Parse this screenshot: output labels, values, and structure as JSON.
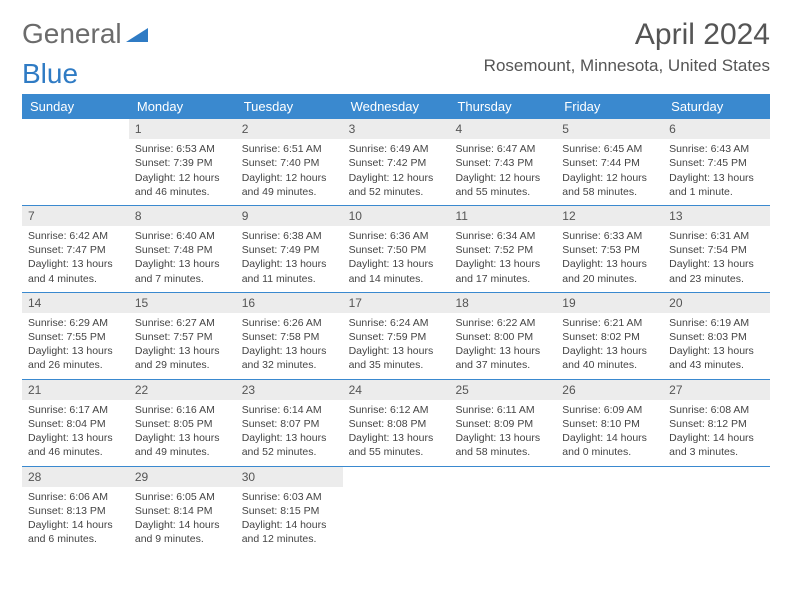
{
  "logo": {
    "text_gray": "General",
    "text_blue": "Blue"
  },
  "header": {
    "month_title": "April 2024",
    "location": "Rosemount, Minnesota, United States"
  },
  "day_names": [
    "Sunday",
    "Monday",
    "Tuesday",
    "Wednesday",
    "Thursday",
    "Friday",
    "Saturday"
  ],
  "colors": {
    "header_bg": "#3a89cf",
    "header_text": "#ffffff",
    "daynum_bg": "#ececec",
    "rule": "#3a89cf",
    "body_text": "#444444"
  },
  "layout": {
    "columns": 7,
    "rows": 5,
    "first_weekday_offset": 1
  },
  "days": [
    {
      "n": 1,
      "sunrise": "6:53 AM",
      "sunset": "7:39 PM",
      "daylight": "12 hours and 46 minutes."
    },
    {
      "n": 2,
      "sunrise": "6:51 AM",
      "sunset": "7:40 PM",
      "daylight": "12 hours and 49 minutes."
    },
    {
      "n": 3,
      "sunrise": "6:49 AM",
      "sunset": "7:42 PM",
      "daylight": "12 hours and 52 minutes."
    },
    {
      "n": 4,
      "sunrise": "6:47 AM",
      "sunset": "7:43 PM",
      "daylight": "12 hours and 55 minutes."
    },
    {
      "n": 5,
      "sunrise": "6:45 AM",
      "sunset": "7:44 PM",
      "daylight": "12 hours and 58 minutes."
    },
    {
      "n": 6,
      "sunrise": "6:43 AM",
      "sunset": "7:45 PM",
      "daylight": "13 hours and 1 minute."
    },
    {
      "n": 7,
      "sunrise": "6:42 AM",
      "sunset": "7:47 PM",
      "daylight": "13 hours and 4 minutes."
    },
    {
      "n": 8,
      "sunrise": "6:40 AM",
      "sunset": "7:48 PM",
      "daylight": "13 hours and 7 minutes."
    },
    {
      "n": 9,
      "sunrise": "6:38 AM",
      "sunset": "7:49 PM",
      "daylight": "13 hours and 11 minutes."
    },
    {
      "n": 10,
      "sunrise": "6:36 AM",
      "sunset": "7:50 PM",
      "daylight": "13 hours and 14 minutes."
    },
    {
      "n": 11,
      "sunrise": "6:34 AM",
      "sunset": "7:52 PM",
      "daylight": "13 hours and 17 minutes."
    },
    {
      "n": 12,
      "sunrise": "6:33 AM",
      "sunset": "7:53 PM",
      "daylight": "13 hours and 20 minutes."
    },
    {
      "n": 13,
      "sunrise": "6:31 AM",
      "sunset": "7:54 PM",
      "daylight": "13 hours and 23 minutes."
    },
    {
      "n": 14,
      "sunrise": "6:29 AM",
      "sunset": "7:55 PM",
      "daylight": "13 hours and 26 minutes."
    },
    {
      "n": 15,
      "sunrise": "6:27 AM",
      "sunset": "7:57 PM",
      "daylight": "13 hours and 29 minutes."
    },
    {
      "n": 16,
      "sunrise": "6:26 AM",
      "sunset": "7:58 PM",
      "daylight": "13 hours and 32 minutes."
    },
    {
      "n": 17,
      "sunrise": "6:24 AM",
      "sunset": "7:59 PM",
      "daylight": "13 hours and 35 minutes."
    },
    {
      "n": 18,
      "sunrise": "6:22 AM",
      "sunset": "8:00 PM",
      "daylight": "13 hours and 37 minutes."
    },
    {
      "n": 19,
      "sunrise": "6:21 AM",
      "sunset": "8:02 PM",
      "daylight": "13 hours and 40 minutes."
    },
    {
      "n": 20,
      "sunrise": "6:19 AM",
      "sunset": "8:03 PM",
      "daylight": "13 hours and 43 minutes."
    },
    {
      "n": 21,
      "sunrise": "6:17 AM",
      "sunset": "8:04 PM",
      "daylight": "13 hours and 46 minutes."
    },
    {
      "n": 22,
      "sunrise": "6:16 AM",
      "sunset": "8:05 PM",
      "daylight": "13 hours and 49 minutes."
    },
    {
      "n": 23,
      "sunrise": "6:14 AM",
      "sunset": "8:07 PM",
      "daylight": "13 hours and 52 minutes."
    },
    {
      "n": 24,
      "sunrise": "6:12 AM",
      "sunset": "8:08 PM",
      "daylight": "13 hours and 55 minutes."
    },
    {
      "n": 25,
      "sunrise": "6:11 AM",
      "sunset": "8:09 PM",
      "daylight": "13 hours and 58 minutes."
    },
    {
      "n": 26,
      "sunrise": "6:09 AM",
      "sunset": "8:10 PM",
      "daylight": "14 hours and 0 minutes."
    },
    {
      "n": 27,
      "sunrise": "6:08 AM",
      "sunset": "8:12 PM",
      "daylight": "14 hours and 3 minutes."
    },
    {
      "n": 28,
      "sunrise": "6:06 AM",
      "sunset": "8:13 PM",
      "daylight": "14 hours and 6 minutes."
    },
    {
      "n": 29,
      "sunrise": "6:05 AM",
      "sunset": "8:14 PM",
      "daylight": "14 hours and 9 minutes."
    },
    {
      "n": 30,
      "sunrise": "6:03 AM",
      "sunset": "8:15 PM",
      "daylight": "14 hours and 12 minutes."
    }
  ],
  "labels": {
    "sunrise": "Sunrise:",
    "sunset": "Sunset:",
    "daylight": "Daylight:"
  }
}
